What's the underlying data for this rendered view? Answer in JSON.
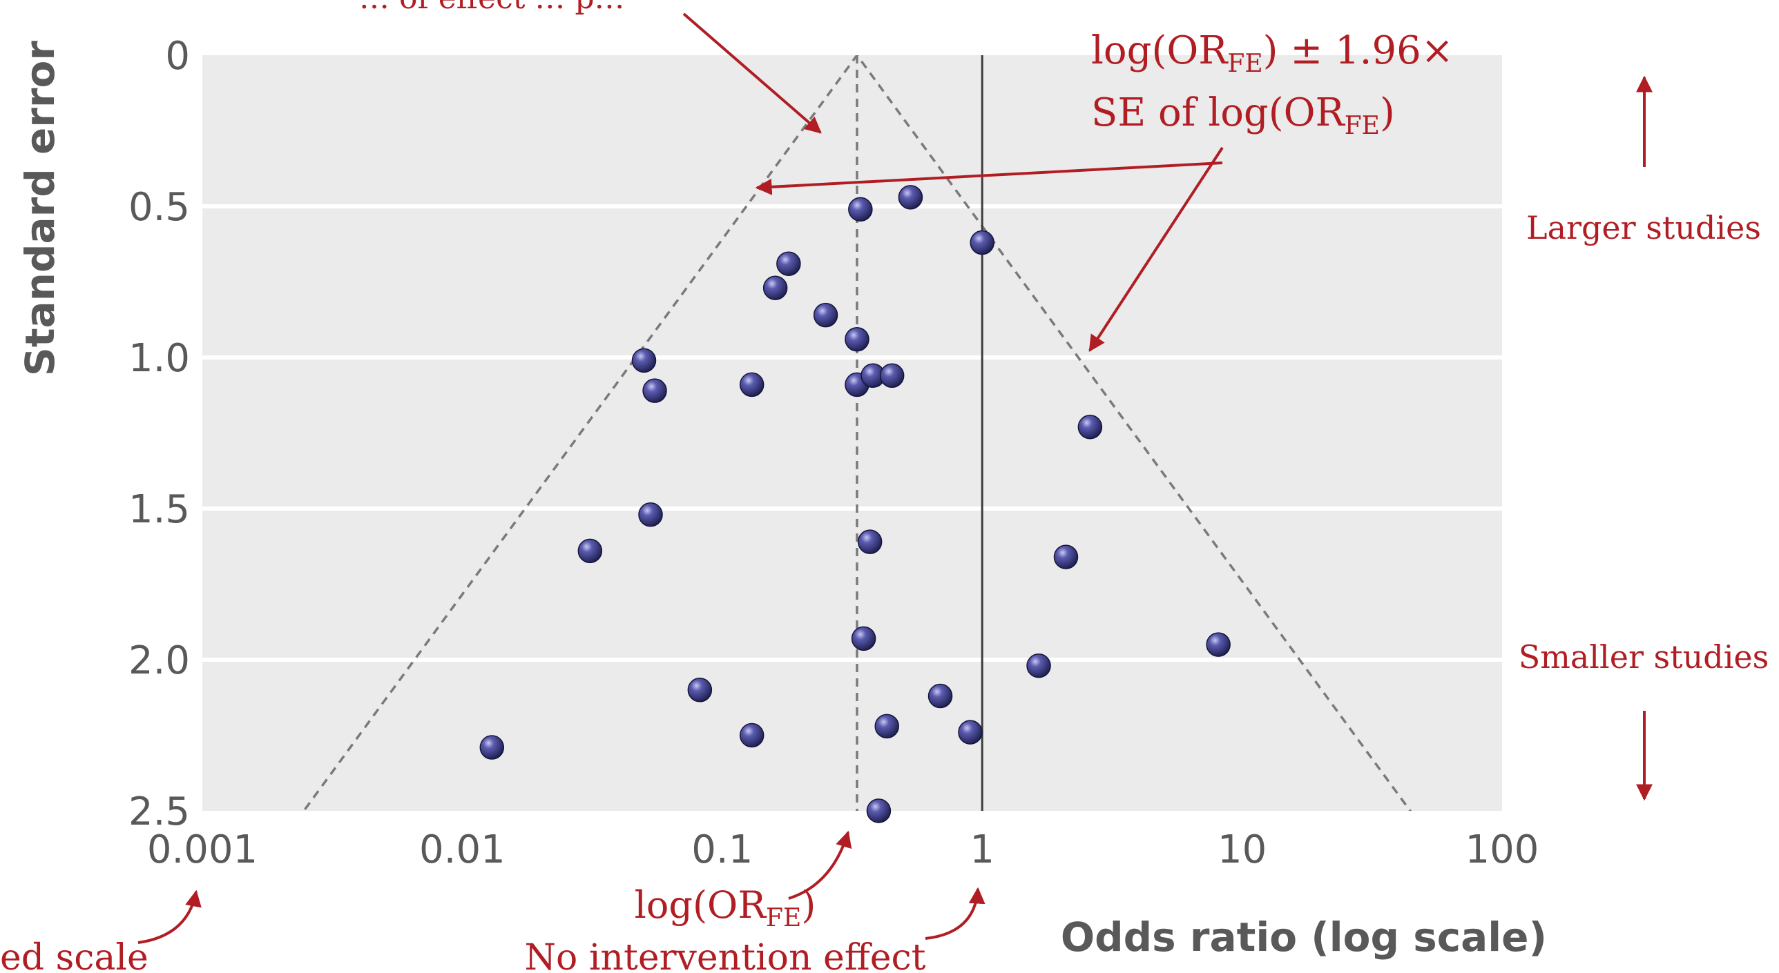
{
  "chart_data": {
    "type": "scatter",
    "title": "",
    "xlabel": "Odds ratio (log scale)",
    "ylabel": "Standard error",
    "x_scale": "log",
    "x_ticks": [
      0.001,
      0.01,
      0.1,
      1,
      10,
      100
    ],
    "x_tick_labels": [
      "0.001",
      "0.01",
      "0.1",
      "1",
      "10",
      "100"
    ],
    "y_ticks": [
      0,
      0.5,
      1.0,
      1.5,
      2.0,
      2.5
    ],
    "y_tick_labels": [
      "0",
      "0.5",
      "1.0",
      "1.5",
      "2.0",
      "2.5"
    ],
    "xlim": [
      0.001,
      100
    ],
    "ylim": [
      0,
      2.5
    ],
    "y_inverted": true,
    "grid": true,
    "pooled_or_fe": 0.33,
    "null_effect_or": 1,
    "funnel_z": 1.96,
    "points": [
      {
        "or": 0.34,
        "se": 0.51
      },
      {
        "or": 0.53,
        "se": 0.47
      },
      {
        "or": 1.0,
        "se": 0.62
      },
      {
        "or": 0.18,
        "se": 0.69
      },
      {
        "or": 0.16,
        "se": 0.77
      },
      {
        "or": 0.25,
        "se": 0.86
      },
      {
        "or": 0.33,
        "se": 0.94
      },
      {
        "or": 0.05,
        "se": 1.01
      },
      {
        "or": 0.055,
        "se": 1.11
      },
      {
        "or": 0.13,
        "se": 1.09
      },
      {
        "or": 0.33,
        "se": 1.09
      },
      {
        "or": 0.38,
        "se": 1.06
      },
      {
        "or": 0.45,
        "se": 1.06
      },
      {
        "or": 2.6,
        "se": 1.23
      },
      {
        "or": 0.053,
        "se": 1.52
      },
      {
        "or": 0.031,
        "se": 1.64
      },
      {
        "or": 0.37,
        "se": 1.61
      },
      {
        "or": 2.1,
        "se": 1.66
      },
      {
        "or": 0.35,
        "se": 1.93
      },
      {
        "or": 8.1,
        "se": 1.95
      },
      {
        "or": 1.65,
        "se": 2.02
      },
      {
        "or": 0.082,
        "se": 2.1
      },
      {
        "or": 0.69,
        "se": 2.12
      },
      {
        "or": 0.13,
        "se": 2.25
      },
      {
        "or": 0.43,
        "se": 2.22
      },
      {
        "or": 0.9,
        "se": 2.24
      },
      {
        "or": 0.013,
        "se": 2.29
      },
      {
        "or": 0.4,
        "se": 2.5
      }
    ]
  },
  "annotations": {
    "top_cut": "… of effect … p…",
    "ci_formula_line1": "log(OR",
    "ci_formula_sub1": "FE",
    "ci_formula_rest1": ") ± 1.96×",
    "ci_formula_line2": "SE of log(OR",
    "ci_formula_sub2": "FE",
    "ci_formula_rest2": ")",
    "larger_studies": "Larger studies",
    "smaller_studies": "Smaller studies",
    "pooled_label": "log(OR",
    "pooled_sub": "FE",
    "pooled_rest": ")",
    "no_effect_label": "No intervention effect",
    "log_scale_note": "ed scale"
  },
  "colors": {
    "plot_bg": "#ebebeb",
    "gridline": "#ffffff",
    "marker": "#3a3b8c",
    "annotation": "#b01e24",
    "axis_text": "#595959",
    "dashed": "#7a7a7a",
    "null_line": "#3c3c3c"
  }
}
